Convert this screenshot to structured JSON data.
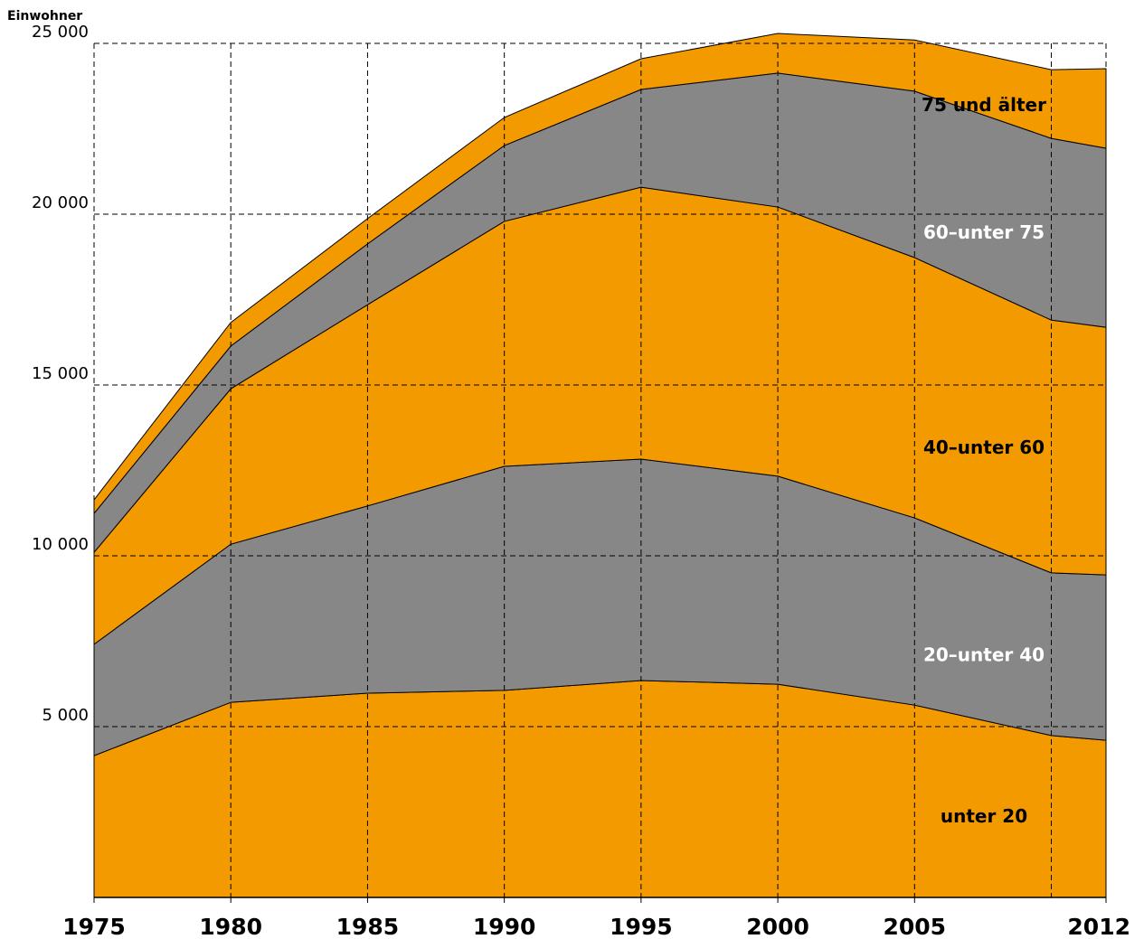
{
  "chart_data": {
    "type": "stacked_area",
    "y_label": "Einwohner",
    "x": [
      1975,
      1980,
      1985,
      1990,
      1995,
      2000,
      2005,
      2010,
      2012
    ],
    "xticks": [
      1975,
      1980,
      1985,
      1990,
      1995,
      2000,
      2005,
      2012
    ],
    "xlim": [
      1975,
      2012
    ],
    "ylim": [
      0,
      25000
    ],
    "yticks": [
      {
        "value": 5000,
        "label": "5 000"
      },
      {
        "value": 10000,
        "label": "10 000"
      },
      {
        "value": 15000,
        "label": "15 000"
      },
      {
        "value": 20000,
        "label": "20 000"
      },
      {
        "value": 25000,
        "label": "25 000"
      }
    ],
    "grid": true,
    "series": [
      {
        "name": "unter 20",
        "color": "#f39a00",
        "label_color": "#000000",
        "values": [
          4150,
          5710,
          5980,
          6060,
          6350,
          6240,
          5630,
          4740,
          4600
        ]
      },
      {
        "name": "20–unter 40",
        "color": "#878787",
        "label_color": "#ffffff",
        "values": [
          3260,
          4630,
          5480,
          6560,
          6480,
          6090,
          5480,
          4760,
          4840
        ]
      },
      {
        "name": "40–unter 60",
        "color": "#f39a00",
        "label_color": "#000000",
        "values": [
          2690,
          4550,
          5890,
          7170,
          7960,
          7880,
          7620,
          7400,
          7250
        ]
      },
      {
        "name": "60–unter 75",
        "color": "#878787",
        "label_color": "#ffffff",
        "values": [
          1140,
          1250,
          1780,
          2220,
          2860,
          3920,
          4870,
          5320,
          5240
        ]
      },
      {
        "name": "75 und älter",
        "color": "#f39a00",
        "label_color": "#000000",
        "values": [
          400,
          690,
          740,
          820,
          900,
          1160,
          1500,
          2010,
          2330
        ]
      }
    ]
  }
}
